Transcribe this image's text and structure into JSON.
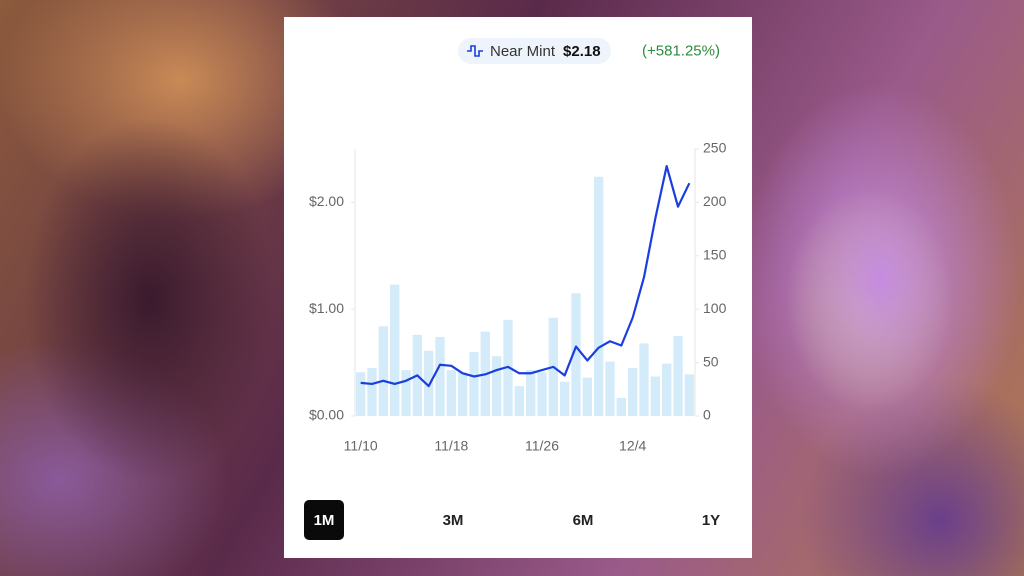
{
  "header": {
    "series_label": "Near Mint",
    "price": "$2.18",
    "change": "(+581.25%)"
  },
  "chart_data": {
    "type": "bar-line",
    "categories": [
      "11/10",
      null,
      null,
      null,
      null,
      null,
      null,
      null,
      "11/18",
      null,
      null,
      null,
      null,
      null,
      null,
      null,
      "11/26",
      null,
      null,
      null,
      null,
      null,
      null,
      null,
      "12/4",
      null,
      null,
      null,
      null,
      null
    ],
    "series": [
      {
        "type": "bar",
        "axis": "y2",
        "color": "#d4ecfa",
        "values": [
          41,
          45,
          84,
          123,
          43,
          76,
          61,
          74,
          43,
          41,
          60,
          79,
          56,
          90,
          28,
          43,
          41,
          92,
          32,
          115,
          36,
          224,
          51,
          17,
          45,
          68,
          37,
          49,
          75,
          39
        ]
      },
      {
        "type": "line",
        "axis": "y",
        "color": "#1a3ee0",
        "values": [
          0.31,
          0.3,
          0.33,
          0.3,
          0.33,
          0.38,
          0.28,
          0.48,
          0.47,
          0.4,
          0.37,
          0.39,
          0.43,
          0.46,
          0.4,
          0.4,
          0.43,
          0.46,
          0.38,
          0.65,
          0.52,
          0.64,
          0.7,
          0.66,
          0.92,
          1.3,
          1.85,
          2.34,
          1.96,
          2.18
        ]
      }
    ],
    "ylim": [
      0,
      2.5
    ],
    "yticks": [
      {
        "value": 0,
        "label": "$0.00"
      },
      {
        "value": 1,
        "label": "$1.00"
      },
      {
        "value": 2,
        "label": "$2.00"
      }
    ],
    "y2lim": [
      0,
      250
    ],
    "y2ticks": [
      0,
      50,
      100,
      150,
      200,
      250
    ]
  },
  "range_buttons": {
    "options": [
      "1M",
      "3M",
      "6M",
      "1Y"
    ],
    "selected": 0
  }
}
